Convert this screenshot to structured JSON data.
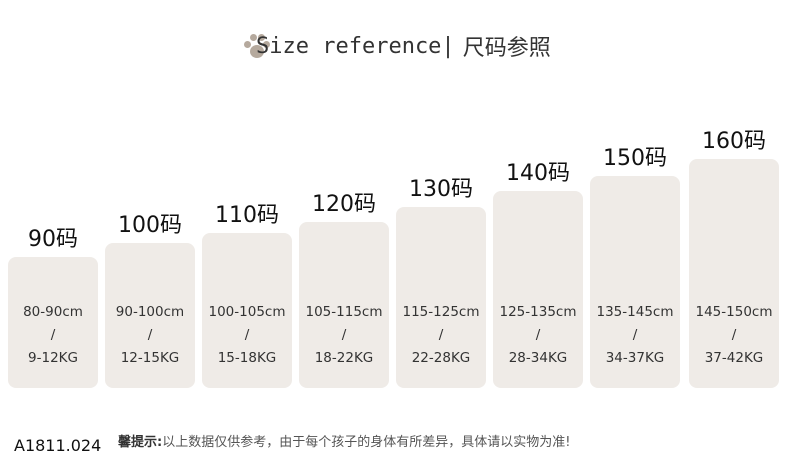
{
  "title": {
    "en": "Size reference|",
    "cn": "尺码参照",
    "icon": "paw-icon"
  },
  "sizes": [
    {
      "label": "90码",
      "height": "80-90cm",
      "sep": "/",
      "weight": "9-12KG"
    },
    {
      "label": "100码",
      "height": "90-100cm",
      "sep": "/",
      "weight": "12-15KG"
    },
    {
      "label": "110码",
      "height": "100-105cm",
      "sep": "/",
      "weight": "15-18KG"
    },
    {
      "label": "120码",
      "height": "105-115cm",
      "sep": "/",
      "weight": "18-22KG"
    },
    {
      "label": "130码",
      "height": "115-125cm",
      "sep": "/",
      "weight": "22-28KG"
    },
    {
      "label": "140码",
      "height": "125-135cm",
      "sep": "/",
      "weight": "28-34KG"
    },
    {
      "label": "150码",
      "height": "135-145cm",
      "sep": "/",
      "weight": "34-37KG"
    },
    {
      "label": "160码",
      "height": "145-150cm",
      "sep": "/",
      "weight": "37-42KG"
    }
  ],
  "footer": {
    "code": "A1811.024",
    "note_label": "馨提示:",
    "note_text": "以上数据仅供参考，由于每个孩子的身体有所差异，具体请以实物为准!"
  },
  "colors": {
    "card": "#efebe7",
    "paw": "#a89a8c"
  }
}
